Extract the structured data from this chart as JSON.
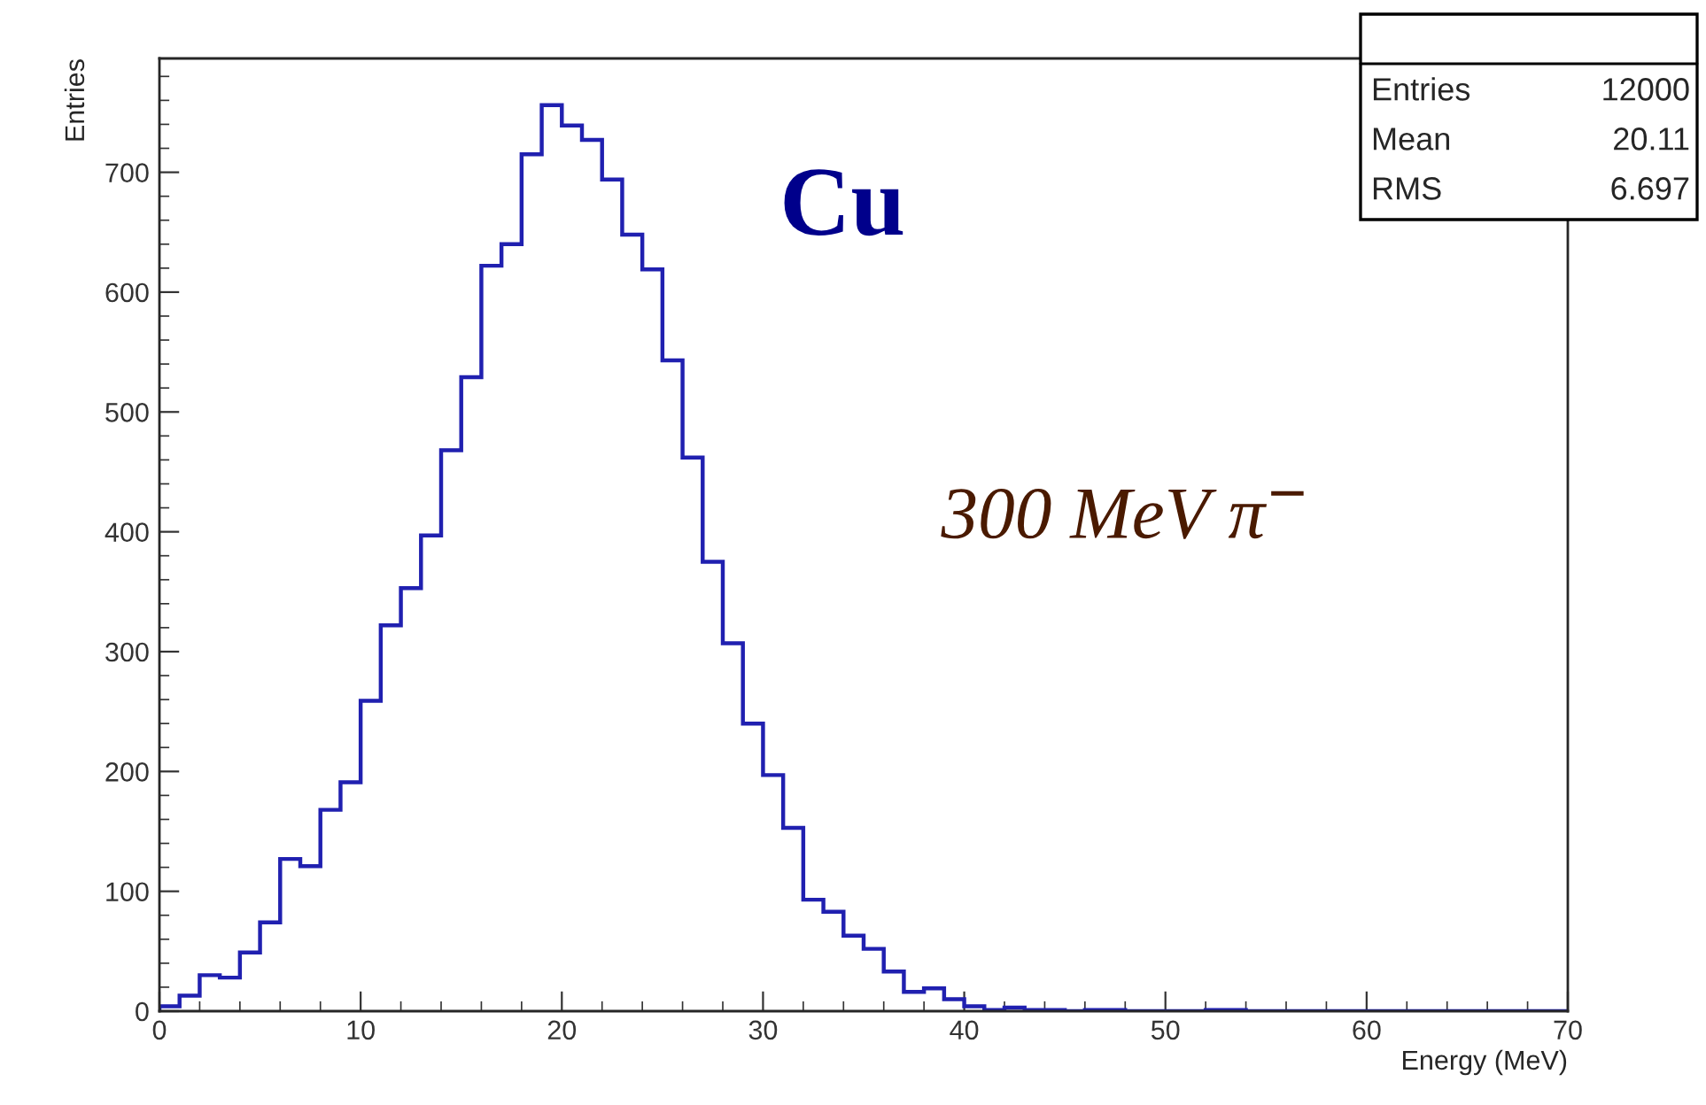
{
  "chart_data": {
    "type": "histogram",
    "xlabel": "Energy (MeV)",
    "ylabel": "Entries",
    "bins": [
      0,
      1,
      2,
      3,
      4,
      5,
      6,
      7,
      8,
      9,
      10,
      11,
      12,
      13,
      14,
      15,
      16,
      17,
      18,
      19,
      20,
      21,
      22,
      23,
      24,
      25,
      26,
      27,
      28,
      29,
      30,
      31,
      32,
      33,
      34,
      35,
      36,
      37,
      38,
      39,
      40,
      41,
      42,
      43,
      44,
      45,
      46,
      47,
      48,
      49,
      50,
      51,
      52,
      53,
      54,
      55,
      56,
      57,
      58,
      59,
      60,
      61,
      62,
      63,
      64,
      65,
      66,
      67,
      68,
      69,
      70
    ],
    "values": [
      4,
      13,
      30,
      28,
      49,
      74,
      127,
      121,
      168,
      191,
      259,
      322,
      353,
      397,
      468,
      529,
      622,
      640,
      715,
      756,
      739,
      727,
      694,
      648,
      619,
      543,
      462,
      375,
      307,
      240,
      197,
      153,
      93,
      83,
      63,
      52,
      33,
      16,
      19,
      10,
      4,
      1,
      3,
      1,
      1,
      0,
      1,
      1,
      0,
      0,
      0,
      0,
      1,
      1,
      0,
      0,
      0,
      0,
      0,
      0,
      0,
      0,
      0,
      0,
      0,
      0,
      0,
      0,
      0,
      0
    ],
    "color": "#2020b0",
    "xlim": [
      0,
      70
    ],
    "xticks": [
      0,
      10,
      20,
      30,
      40,
      50,
      60,
      70
    ],
    "ylim": [
      0,
      795
    ],
    "yticks": [
      0,
      100,
      200,
      300,
      400,
      500,
      600,
      700
    ],
    "grid": false,
    "annotations": [
      "Cu",
      "300 MeV π$^{−}$",
      "Entries",
      "12000",
      "Mean",
      "20.11",
      "RMS",
      "6.697"
    ]
  }
}
